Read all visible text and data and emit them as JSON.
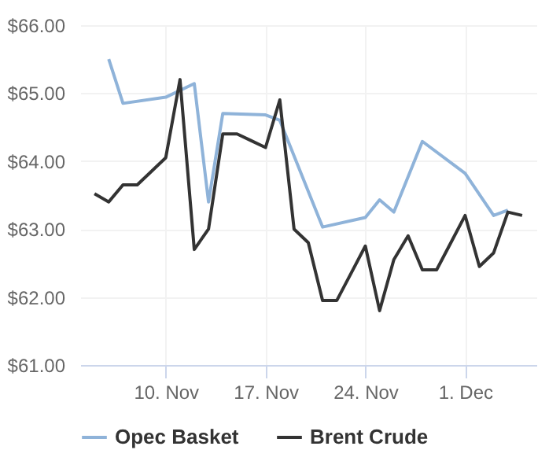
{
  "chart_data": {
    "type": "line",
    "xlim": [
      "--11-04",
      "--12-06"
    ],
    "xticks": [
      {
        "value": "--11-10",
        "label": "10. Nov"
      },
      {
        "value": "--11-17",
        "label": "17. Nov"
      },
      {
        "value": "--11-24",
        "label": "24. Nov"
      },
      {
        "value": "--12-01",
        "label": "1. Dec"
      }
    ],
    "ylim": [
      61,
      66
    ],
    "yticks": [
      {
        "value": 61,
        "label": "$61.00"
      },
      {
        "value": 62,
        "label": "$62.00"
      },
      {
        "value": 63,
        "label": "$63.00"
      },
      {
        "value": 64,
        "label": "$64.00"
      },
      {
        "value": 65,
        "label": "$65.00"
      },
      {
        "value": 66,
        "label": "$66.00"
      }
    ],
    "grid": true,
    "legend": "bottom",
    "marker": "none",
    "line_style": "solid",
    "series": [
      {
        "name": "Opec Basket",
        "color": "#8fb3d9",
        "x": [
          "--11-06",
          "--11-07",
          "--11-10",
          "--11-12",
          "--11-13",
          "--11-14",
          "--11-17",
          "--11-18",
          "--11-21",
          "--11-24",
          "--11-25",
          "--11-26",
          "--11-28",
          "--12-01",
          "--12-03",
          "--12-04"
        ],
        "values": [
          65.5,
          64.85,
          64.94,
          65.14,
          63.4,
          64.7,
          64.68,
          64.6,
          63.03,
          63.17,
          63.43,
          63.25,
          64.29,
          63.82,
          63.2,
          63.28
        ]
      },
      {
        "name": "Brent Crude",
        "color": "#333333",
        "x": [
          "--11-05",
          "--11-06",
          "--11-07",
          "--11-08",
          "--11-09",
          "--11-10",
          "--11-11",
          "--11-12",
          "--11-13",
          "--11-14",
          "--11-15",
          "--11-16",
          "--11-17",
          "--11-18",
          "--11-19",
          "--11-20",
          "--11-21",
          "--11-22",
          "--11-23",
          "--11-24",
          "--11-25",
          "--11-26",
          "--11-27",
          "--11-28",
          "--11-29",
          "--11-30",
          "--12-01",
          "--12-02",
          "--12-03",
          "--12-04",
          "--12-05"
        ],
        "values": [
          63.52,
          63.4,
          63.65,
          63.65,
          63.85,
          64.05,
          65.2,
          62.7,
          63.0,
          64.4,
          64.4,
          64.3,
          64.2,
          64.9,
          63.0,
          62.8,
          61.95,
          61.95,
          62.35,
          62.75,
          61.8,
          62.55,
          62.9,
          62.4,
          62.4,
          62.8,
          63.2,
          62.45,
          62.65,
          63.25,
          63.2
        ]
      }
    ]
  }
}
